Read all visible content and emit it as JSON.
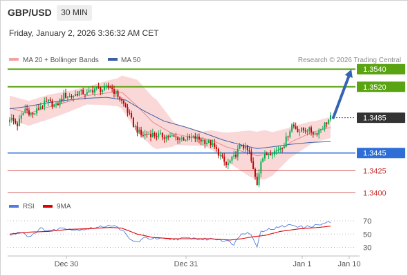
{
  "header": {
    "pair": "GBP/USD",
    "timeframe": "30 MIN",
    "datetime": "Friday, January 2, 2026 3:36:32 AM CET"
  },
  "legend": {
    "bollinger": "MA 20 + Bollinger Bands",
    "ma50": "MA 50",
    "credit": "Research © 2026 Trading Central"
  },
  "rsi_legend": {
    "rsi": "RSI",
    "ma9": "9MA"
  },
  "colors": {
    "bull": "#00b050",
    "bear": "#c00000",
    "resistance": "#5aa312",
    "support": "#2d6fd6",
    "target": "#c83232",
    "bband": "#f5b8b8",
    "ma20": "#e88a8a",
    "ma50": "#3d5ea3",
    "arrow": "#3464b4",
    "rsi": "#4f7be0",
    "rsi_ma": "#e00000"
  },
  "chart_data": [
    {
      "type": "candlestick",
      "ylim": [
        1.3388,
        1.3555
      ],
      "x_ticks": [
        "Dec 30",
        "Dec 31",
        "Jan 1",
        "Jan 10"
      ],
      "current_price": "1.3485",
      "levels": [
        {
          "label": "1.3540",
          "value": 1.354,
          "kind": "resistance"
        },
        {
          "label": "1.3520",
          "value": 1.352,
          "kind": "resistance"
        },
        {
          "label": "1.3445",
          "value": 1.3445,
          "kind": "support"
        },
        {
          "label": "1.3425",
          "value": 1.3425,
          "kind": "target"
        },
        {
          "label": "1.3400",
          "value": 1.34,
          "kind": "target"
        }
      ],
      "projection": {
        "from": 1.3485,
        "to": 1.354
      },
      "close_anchors": [
        [
          0,
          1.3485
        ],
        [
          4,
          1.3477
        ],
        [
          8,
          1.3495
        ],
        [
          12,
          1.3488
        ],
        [
          16,
          1.3498
        ],
        [
          20,
          1.3503
        ],
        [
          24,
          1.3498
        ],
        [
          28,
          1.351
        ],
        [
          32,
          1.3509
        ],
        [
          36,
          1.3514
        ],
        [
          40,
          1.3512
        ],
        [
          44,
          1.3518
        ],
        [
          48,
          1.3517
        ],
        [
          52,
          1.352
        ],
        [
          56,
          1.351
        ],
        [
          60,
          1.3497
        ],
        [
          64,
          1.3477
        ],
        [
          68,
          1.3465
        ],
        [
          72,
          1.3467
        ],
        [
          76,
          1.3465
        ],
        [
          80,
          1.3464
        ],
        [
          84,
          1.3463
        ],
        [
          88,
          1.3462
        ],
        [
          92,
          1.3461
        ],
        [
          96,
          1.3462
        ],
        [
          100,
          1.3459
        ],
        [
          104,
          1.3456
        ],
        [
          108,
          1.3445
        ],
        [
          112,
          1.3431
        ],
        [
          116,
          1.344
        ],
        [
          120,
          1.3455
        ],
        [
          124,
          1.3445
        ],
        [
          126,
          1.3425
        ],
        [
          128,
          1.341
        ],
        [
          130,
          1.3438
        ],
        [
          134,
          1.3445
        ],
        [
          138,
          1.3448
        ],
        [
          142,
          1.3455
        ],
        [
          146,
          1.3477
        ],
        [
          150,
          1.347
        ],
        [
          154,
          1.3472
        ],
        [
          158,
          1.3467
        ],
        [
          162,
          1.3475
        ],
        [
          166,
          1.3485
        ]
      ],
      "ma50_anchors": [
        [
          0,
          1.3495
        ],
        [
          10,
          1.3498
        ],
        [
          20,
          1.3502
        ],
        [
          30,
          1.3505
        ],
        [
          40,
          1.3507
        ],
        [
          50,
          1.3508
        ],
        [
          60,
          1.3505
        ],
        [
          70,
          1.3492
        ],
        [
          80,
          1.3481
        ],
        [
          90,
          1.3475
        ],
        [
          100,
          1.3468
        ],
        [
          110,
          1.346
        ],
        [
          120,
          1.3454
        ],
        [
          128,
          1.345
        ],
        [
          136,
          1.3452
        ],
        [
          146,
          1.3455
        ],
        [
          156,
          1.3457
        ],
        [
          166,
          1.3458
        ]
      ],
      "ma20_anchors": [
        [
          0,
          1.3496
        ],
        [
          10,
          1.349
        ],
        [
          20,
          1.3497
        ],
        [
          30,
          1.3503
        ],
        [
          40,
          1.351
        ],
        [
          50,
          1.3513
        ],
        [
          58,
          1.3514
        ],
        [
          66,
          1.3498
        ],
        [
          74,
          1.348
        ],
        [
          84,
          1.3467
        ],
        [
          94,
          1.3463
        ],
        [
          104,
          1.346
        ],
        [
          112,
          1.3452
        ],
        [
          120,
          1.3447
        ],
        [
          128,
          1.3442
        ],
        [
          136,
          1.3444
        ],
        [
          146,
          1.3458
        ],
        [
          156,
          1.3468
        ],
        [
          166,
          1.3474
        ]
      ],
      "band_width_anchors": [
        [
          0,
          0.0014
        ],
        [
          20,
          0.0014
        ],
        [
          40,
          0.001
        ],
        [
          56,
          0.0016
        ],
        [
          66,
          0.003
        ],
        [
          76,
          0.0028
        ],
        [
          86,
          0.0012
        ],
        [
          100,
          0.0008
        ],
        [
          112,
          0.0016
        ],
        [
          124,
          0.0026
        ],
        [
          132,
          0.0028
        ],
        [
          144,
          0.0018
        ],
        [
          158,
          0.0012
        ],
        [
          166,
          0.0012
        ]
      ]
    },
    {
      "type": "line",
      "name": "RSI",
      "ylim": [
        20,
        80
      ],
      "y_ticks": [
        "70",
        "50",
        "30"
      ],
      "guides": [
        70,
        50,
        30
      ],
      "rsi_anchors": [
        [
          0,
          48
        ],
        [
          6,
          54
        ],
        [
          10,
          46
        ],
        [
          16,
          58
        ],
        [
          22,
          55
        ],
        [
          28,
          60
        ],
        [
          34,
          56
        ],
        [
          40,
          58
        ],
        [
          46,
          60
        ],
        [
          52,
          64
        ],
        [
          58,
          57
        ],
        [
          62,
          42
        ],
        [
          66,
          38
        ],
        [
          70,
          44
        ],
        [
          76,
          43
        ],
        [
          82,
          42
        ],
        [
          88,
          43
        ],
        [
          94,
          44
        ],
        [
          100,
          42
        ],
        [
          106,
          43
        ],
        [
          112,
          40
        ],
        [
          116,
          35
        ],
        [
          120,
          52
        ],
        [
          124,
          52
        ],
        [
          126,
          42
        ],
        [
          128,
          32
        ],
        [
          130,
          55
        ],
        [
          136,
          58
        ],
        [
          142,
          62
        ],
        [
          146,
          64
        ],
        [
          152,
          60
        ],
        [
          156,
          62
        ],
        [
          160,
          64
        ],
        [
          166,
          68
        ]
      ],
      "ma_anchors": [
        [
          0,
          50
        ],
        [
          10,
          53
        ],
        [
          20,
          54
        ],
        [
          30,
          57
        ],
        [
          40,
          58
        ],
        [
          52,
          60
        ],
        [
          58,
          59
        ],
        [
          66,
          50
        ],
        [
          74,
          45
        ],
        [
          84,
          43
        ],
        [
          94,
          43
        ],
        [
          104,
          43
        ],
        [
          114,
          41
        ],
        [
          120,
          43
        ],
        [
          126,
          46
        ],
        [
          132,
          48
        ],
        [
          140,
          54
        ],
        [
          150,
          58
        ],
        [
          160,
          60
        ],
        [
          166,
          62
        ]
      ]
    }
  ]
}
